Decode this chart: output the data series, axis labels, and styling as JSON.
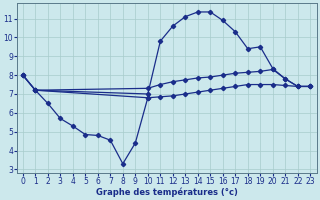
{
  "xlabel": "Graphe des températures (°c)",
  "bg_color": "#cce8ec",
  "line_color": "#1a2d8a",
  "grid_color": "#a8cccc",
  "xlim": [
    -0.5,
    23.5
  ],
  "ylim": [
    2.8,
    11.8
  ],
  "xticks": [
    0,
    1,
    2,
    3,
    4,
    5,
    6,
    7,
    8,
    9,
    10,
    11,
    12,
    13,
    14,
    15,
    16,
    17,
    18,
    19,
    20,
    21,
    22,
    23
  ],
  "yticks": [
    3,
    4,
    5,
    6,
    7,
    8,
    9,
    10,
    11
  ],
  "line_arch_x": [
    0,
    1,
    10,
    11,
    12,
    13,
    14,
    15,
    16,
    17,
    18,
    19,
    20,
    21,
    22,
    23
  ],
  "line_arch_y": [
    8.0,
    7.2,
    7.0,
    9.8,
    10.6,
    11.1,
    11.35,
    11.35,
    10.9,
    10.3,
    9.4,
    9.5,
    8.35,
    7.8,
    7.4,
    7.4
  ],
  "line_upper_flat_x": [
    0,
    1,
    10,
    11,
    12,
    13,
    14,
    15,
    16,
    17,
    18,
    19,
    20,
    21,
    22,
    23
  ],
  "line_upper_flat_y": [
    8.0,
    7.2,
    7.3,
    7.5,
    7.65,
    7.75,
    7.85,
    7.9,
    8.0,
    8.1,
    8.15,
    8.2,
    8.3,
    7.8,
    7.4,
    7.4
  ],
  "line_lower_flat_x": [
    0,
    1,
    10,
    11,
    12,
    13,
    14,
    15,
    16,
    17,
    18,
    19,
    20,
    21,
    22,
    23
  ],
  "line_lower_flat_y": [
    8.0,
    7.2,
    6.8,
    6.85,
    6.9,
    7.0,
    7.1,
    7.2,
    7.3,
    7.4,
    7.5,
    7.5,
    7.5,
    7.45,
    7.4,
    7.4
  ],
  "line_dip_x": [
    1,
    2,
    3,
    4,
    5,
    6,
    7,
    8,
    9,
    10
  ],
  "line_dip_y": [
    7.2,
    6.5,
    5.7,
    5.3,
    4.85,
    4.8,
    4.55,
    3.3,
    4.4,
    6.8
  ],
  "xlabel_fontsize": 6,
  "tick_fontsize": 5.5
}
